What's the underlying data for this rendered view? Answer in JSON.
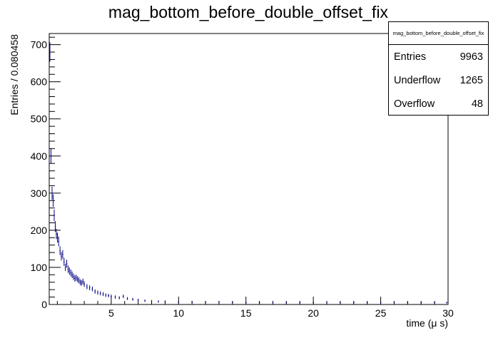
{
  "chart_data": {
    "type": "histogram",
    "title": "mag_bottom_before_double_offset_fix",
    "xlabel": "time (μ s)",
    "ylabel": "Entries / 0.080458",
    "xlim": [
      0.4,
      30.0
    ],
    "ylim": [
      0,
      730
    ],
    "xticks": [
      5,
      10,
      15,
      20,
      25,
      30
    ],
    "xtick_labels": [
      "5",
      "10",
      "15",
      "20",
      "25",
      "30"
    ],
    "yticks": [
      0,
      100,
      200,
      300,
      400,
      500,
      600,
      700
    ],
    "ytick_labels": [
      "0",
      "100",
      "200",
      "300",
      "400",
      "500",
      "600",
      "700"
    ],
    "bin_width": 0.080458,
    "grid": false,
    "line_color": "#000080",
    "series": [
      {
        "x": [
          0.45,
          0.53,
          0.61,
          0.69,
          0.77,
          0.85,
          0.93,
          1.01,
          1.1,
          1.2,
          1.3,
          1.4,
          1.5,
          1.6,
          1.7,
          1.8,
          1.9,
          2.0,
          2.1,
          2.2,
          2.3,
          2.4,
          2.5,
          2.6,
          2.7,
          2.8,
          2.9,
          3.0,
          3.2,
          3.4,
          3.6,
          3.8,
          4.0,
          4.2,
          4.4,
          4.6,
          4.8,
          5.0,
          5.3,
          5.6,
          5.9,
          6.2,
          6.6,
          7.0,
          7.5,
          8.0,
          8.5,
          9.0,
          10.0,
          11.0,
          12.0,
          13.0,
          14.0,
          15.0,
          16.0,
          17.0,
          18.0,
          19.0,
          20.0,
          21.0,
          22.0,
          23.0,
          24.0,
          25.0,
          26.0,
          27.0,
          28.0,
          29.0,
          29.9
        ],
        "y": [
          680,
          400,
          300,
          280,
          240,
          210,
          190,
          180,
          170,
          145,
          130,
          135,
          115,
          100,
          110,
          95,
          90,
          85,
          80,
          75,
          70,
          72,
          68,
          65,
          60,
          58,
          62,
          55,
          48,
          45,
          42,
          35,
          32,
          30,
          28,
          25,
          24,
          22,
          20,
          18,
          22,
          16,
          14,
          12,
          10,
          9,
          8,
          8,
          7,
          7,
          6,
          6,
          6,
          5,
          5,
          5,
          5,
          5,
          5,
          5,
          5,
          5,
          5,
          5,
          5,
          5,
          5,
          5,
          5
        ]
      }
    ]
  },
  "stats": {
    "title": "mag_bottom_before_double_offset_fix",
    "rows": [
      {
        "label": "Entries",
        "value": "9963"
      },
      {
        "label": "Underflow",
        "value": "1265"
      },
      {
        "label": "Overflow",
        "value": "48"
      }
    ]
  }
}
